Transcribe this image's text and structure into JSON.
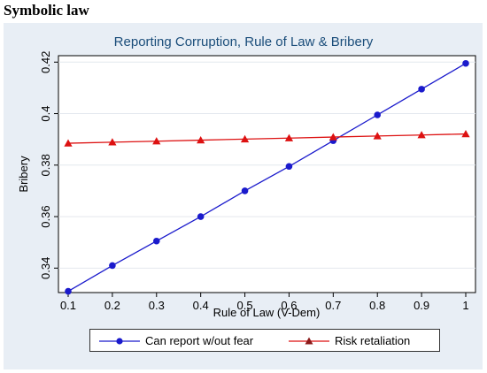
{
  "heading": "Symbolic law",
  "chart_data": {
    "type": "line",
    "title": "Reporting Corruption, Rule of Law & Bribery",
    "xlabel": "Rule of Law (V-Dem)",
    "ylabel": "Bribery",
    "x": [
      0.1,
      0.2,
      0.3,
      0.4,
      0.5,
      0.6,
      0.7,
      0.8,
      0.9,
      1.0
    ],
    "xticks": [
      "0.1",
      "0.2",
      "0.3",
      "0.4",
      "0.5",
      "0.6",
      "0.7",
      "0.8",
      "0.9",
      "1"
    ],
    "yticks": [
      "0.34",
      "0.36",
      "0.38",
      "0.4",
      "0.42"
    ],
    "ylim": [
      0.3305,
      0.4225
    ],
    "xlim": [
      0.1,
      1.0
    ],
    "legend_position": "bottom",
    "series": [
      {
        "name": "Can report w/out fear",
        "color": "#1a1acc",
        "marker": "circle",
        "values": [
          0.331,
          0.341,
          0.3505,
          0.36,
          0.37,
          0.3795,
          0.3895,
          0.3995,
          0.4095,
          0.4195
        ]
      },
      {
        "name": "Risk retaliation",
        "color": "#dd1111",
        "marker": "triangle",
        "values": [
          0.3885,
          0.3889,
          0.3893,
          0.3897,
          0.3901,
          0.3905,
          0.3909,
          0.3913,
          0.3917,
          0.3921
        ]
      }
    ]
  }
}
